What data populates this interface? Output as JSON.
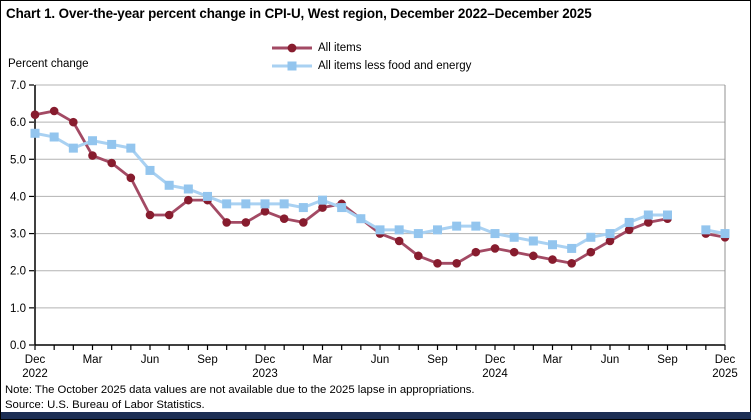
{
  "title": "Chart 1. Over-the-year percent change in CPI-U, West region, December 2022–December 2025",
  "y_axis_label": "Percent change",
  "note": "Note: The October 2025 data values are not available due to the 2025 lapse in appropriations.",
  "source": "Source: U.S. Bureau of Labor Statistics.",
  "colors": {
    "all_items_line": "#a34a64",
    "all_items_marker": "#871c2e",
    "core_line": "#a9d1f2",
    "core_marker": "#93c5ee",
    "gridline": "#b3b3b3",
    "axis": "#000000",
    "plot_frame_right": "#909090",
    "bottom_bar": "#1c2e54"
  },
  "legend": {
    "items": [
      {
        "label": "All items"
      },
      {
        "label": "All items less food and energy"
      }
    ]
  },
  "chart_data": {
    "type": "line",
    "title": "Chart 1. Over-the-year percent change in CPI-U, West region, December 2022–December 2025",
    "ylabel": "Percent change",
    "ylim": [
      0.0,
      7.0
    ],
    "y_tick_step": 1.0,
    "y_tick_labels": [
      "0.0",
      "1.0",
      "2.0",
      "3.0",
      "4.0",
      "5.0",
      "6.0",
      "7.0"
    ],
    "grid": true,
    "legend_position": "top-center",
    "x_tick_label_every": 3,
    "x_tick_labels": [
      "Dec",
      "Mar",
      "Jun",
      "Sep",
      "Dec",
      "Mar",
      "Jun",
      "Sep",
      "Dec",
      "Mar",
      "Jun",
      "Sep",
      "Dec"
    ],
    "x_year_labels": [
      "2022",
      "2023",
      "2024",
      "2025"
    ],
    "gap_note": "October 2025 values missing (lapse in appropriations)",
    "categories": [
      "Dec 2022",
      "Jan 2023",
      "Feb 2023",
      "Mar 2023",
      "Apr 2023",
      "May 2023",
      "Jun 2023",
      "Jul 2023",
      "Aug 2023",
      "Sep 2023",
      "Oct 2023",
      "Nov 2023",
      "Dec 2023",
      "Jan 2024",
      "Feb 2024",
      "Mar 2024",
      "Apr 2024",
      "May 2024",
      "Jun 2024",
      "Jul 2024",
      "Aug 2024",
      "Sep 2024",
      "Oct 2024",
      "Nov 2024",
      "Dec 2024",
      "Jan 2025",
      "Feb 2025",
      "Mar 2025",
      "Apr 2025",
      "May 2025",
      "Jun 2025",
      "Jul 2025",
      "Aug 2025",
      "Sep 2025",
      "Oct 2025",
      "Nov 2025",
      "Dec 2025"
    ],
    "series": [
      {
        "name": "All items",
        "marker": "circle",
        "line_color": "#a34a64",
        "marker_color": "#871c2e",
        "values": [
          6.2,
          6.3,
          6.0,
          5.1,
          4.9,
          4.5,
          3.5,
          3.5,
          3.9,
          3.9,
          3.3,
          3.3,
          3.6,
          3.4,
          3.3,
          3.7,
          3.8,
          3.4,
          3.0,
          2.8,
          2.4,
          2.2,
          2.2,
          2.5,
          2.6,
          2.5,
          2.4,
          2.3,
          2.2,
          2.5,
          2.8,
          3.1,
          3.3,
          3.4,
          null,
          3.0,
          2.9
        ]
      },
      {
        "name": "All items less food and energy",
        "marker": "square",
        "line_color": "#a9d1f2",
        "marker_color": "#93c5ee",
        "values": [
          5.7,
          5.6,
          5.3,
          5.5,
          5.4,
          5.3,
          4.7,
          4.3,
          4.2,
          4.0,
          3.8,
          3.8,
          3.8,
          3.8,
          3.7,
          3.9,
          3.7,
          3.4,
          3.1,
          3.1,
          3.0,
          3.1,
          3.2,
          3.2,
          3.0,
          2.9,
          2.8,
          2.7,
          2.6,
          2.9,
          3.0,
          3.3,
          3.5,
          3.5,
          null,
          3.1,
          3.0
        ]
      }
    ]
  }
}
